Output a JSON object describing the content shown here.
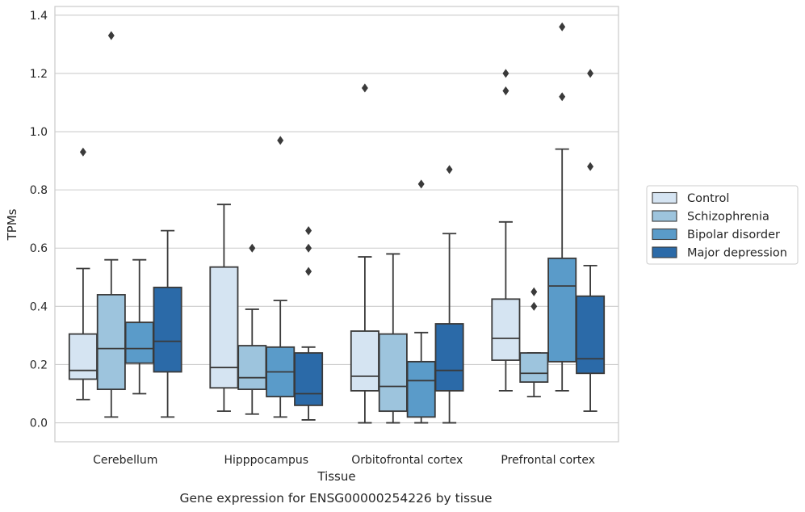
{
  "chart_data": {
    "type": "box",
    "caption": "Gene expression for ENSG00000254226 by tissue",
    "xlabel": "Tissue",
    "ylabel": "TPMs",
    "ylim": [
      -0.065,
      1.43
    ],
    "yticks": [
      0.0,
      0.2,
      0.4,
      0.6,
      0.8,
      1.0,
      1.2,
      1.4
    ],
    "ytick_labels": [
      "0.0",
      "0.2",
      "0.4",
      "0.6",
      "0.8",
      "1.0",
      "1.2",
      "1.4"
    ],
    "grid": true,
    "legend_position": "right",
    "categories": [
      "Cerebellum",
      "Hipppocampus",
      "Orbitofrontal cortex",
      "Prefrontal cortex"
    ],
    "series": [
      {
        "name": "Control",
        "color": "#d5e4f2",
        "boxes": [
          {
            "whisker_low": 0.08,
            "q1": 0.15,
            "median": 0.18,
            "q3": 0.305,
            "whisker_high": 0.53,
            "outliers": [
              0.93
            ]
          },
          {
            "whisker_low": 0.04,
            "q1": 0.12,
            "median": 0.19,
            "q3": 0.535,
            "whisker_high": 0.75,
            "outliers": []
          },
          {
            "whisker_low": 0.0,
            "q1": 0.11,
            "median": 0.16,
            "q3": 0.315,
            "whisker_high": 0.57,
            "outliers": [
              1.15
            ]
          },
          {
            "whisker_low": 0.11,
            "q1": 0.215,
            "median": 0.29,
            "q3": 0.425,
            "whisker_high": 0.69,
            "outliers": [
              1.2,
              1.14
            ]
          }
        ]
      },
      {
        "name": "Schizophrenia",
        "color": "#9dc4dd",
        "boxes": [
          {
            "whisker_low": 0.02,
            "q1": 0.115,
            "median": 0.255,
            "q3": 0.44,
            "whisker_high": 0.56,
            "outliers": [
              1.33
            ]
          },
          {
            "whisker_low": 0.03,
            "q1": 0.115,
            "median": 0.155,
            "q3": 0.265,
            "whisker_high": 0.39,
            "outliers": [
              0.6
            ]
          },
          {
            "whisker_low": 0.0,
            "q1": 0.04,
            "median": 0.125,
            "q3": 0.305,
            "whisker_high": 0.58,
            "outliers": []
          },
          {
            "whisker_low": 0.09,
            "q1": 0.14,
            "median": 0.17,
            "q3": 0.24,
            "whisker_high": 0.24,
            "outliers": [
              0.45,
              0.4
            ]
          }
        ]
      },
      {
        "name": "Bipolar disorder",
        "color": "#5a9bc9",
        "boxes": [
          {
            "whisker_low": 0.1,
            "q1": 0.205,
            "median": 0.255,
            "q3": 0.345,
            "whisker_high": 0.56,
            "outliers": []
          },
          {
            "whisker_low": 0.02,
            "q1": 0.09,
            "median": 0.175,
            "q3": 0.26,
            "whisker_high": 0.42,
            "outliers": [
              0.97
            ]
          },
          {
            "whisker_low": 0.0,
            "q1": 0.02,
            "median": 0.145,
            "q3": 0.21,
            "whisker_high": 0.31,
            "outliers": [
              0.82
            ]
          },
          {
            "whisker_low": 0.11,
            "q1": 0.21,
            "median": 0.47,
            "q3": 0.565,
            "whisker_high": 0.94,
            "outliers": [
              1.36,
              1.12
            ]
          }
        ]
      },
      {
        "name": "Major depression",
        "color": "#2b6aa8",
        "boxes": [
          {
            "whisker_low": 0.02,
            "q1": 0.175,
            "median": 0.28,
            "q3": 0.465,
            "whisker_high": 0.66,
            "outliers": []
          },
          {
            "whisker_low": 0.01,
            "q1": 0.06,
            "median": 0.1,
            "q3": 0.24,
            "whisker_high": 0.26,
            "outliers": [
              0.66,
              0.6,
              0.52
            ]
          },
          {
            "whisker_low": 0.0,
            "q1": 0.11,
            "median": 0.18,
            "q3": 0.34,
            "whisker_high": 0.65,
            "outliers": [
              0.87
            ]
          },
          {
            "whisker_low": 0.04,
            "q1": 0.17,
            "median": 0.22,
            "q3": 0.435,
            "whisker_high": 0.54,
            "outliers": [
              1.2,
              0.88
            ]
          }
        ]
      }
    ]
  }
}
